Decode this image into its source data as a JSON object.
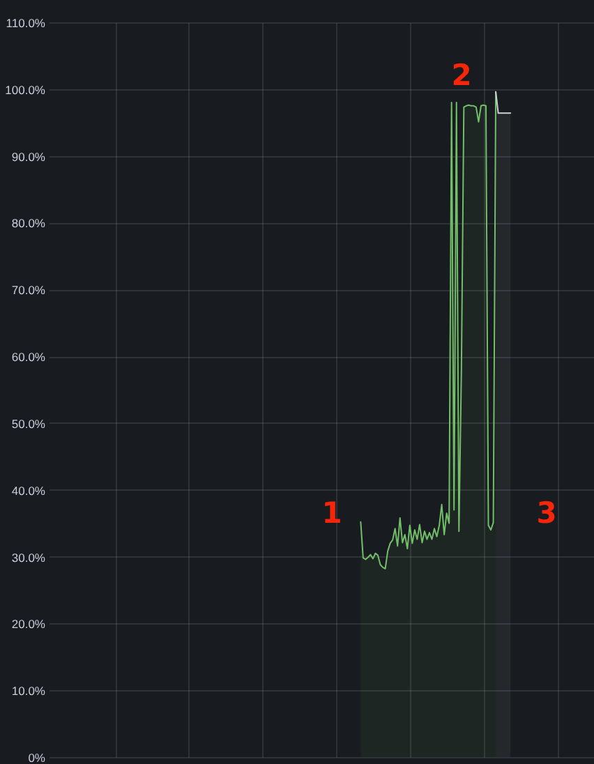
{
  "chart_data": {
    "type": "area",
    "categories": [
      null,
      null,
      null,
      null,
      null,
      null,
      null,
      null,
      null,
      null,
      null,
      null,
      null,
      null,
      null,
      null,
      null,
      null,
      null,
      null,
      null,
      null,
      null,
      null,
      null,
      null,
      null,
      null,
      null,
      null,
      null,
      null,
      null,
      null,
      null,
      null,
      null,
      null,
      null,
      null,
      null,
      null,
      null,
      null,
      null,
      null,
      null,
      null,
      null,
      null,
      null,
      null,
      null,
      null,
      null,
      null,
      null,
      null,
      null,
      null,
      null,
      null,
      null,
      null,
      null,
      null,
      null,
      null,
      null,
      null,
      null,
      null,
      null,
      null,
      null,
      null,
      null,
      null,
      null,
      null,
      null,
      null,
      null,
      null,
      null,
      null,
      null,
      null,
      null,
      null,
      null,
      null,
      null,
      null,
      null,
      null,
      null,
      null,
      null,
      null,
      null,
      null,
      null,
      null,
      null,
      null,
      null,
      null,
      null,
      null,
      null,
      null,
      null,
      null,
      null,
      null,
      null,
      null,
      null,
      null,
      null,
      null,
      null,
      null,
      null,
      null,
      null,
      null,
      null,
      null,
      null,
      null,
      null,
      null,
      null,
      null,
      null,
      null,
      null,
      null,
      null,
      null,
      null,
      null,
      null,
      null,
      null,
      null,
      null,
      null,
      null,
      null,
      null,
      null,
      null,
      null,
      null,
      null,
      null,
      null,
      null,
      null,
      null,
      null,
      null,
      null,
      null,
      null,
      null,
      null,
      null,
      null,
      null,
      null,
      null,
      null,
      null,
      null,
      null,
      null,
      null,
      null,
      null,
      null,
      null,
      null,
      null,
      null,
      null,
      null,
      null,
      null,
      null,
      null,
      null,
      null,
      null,
      null,
      null,
      null,
      null,
      null,
      null,
      null,
      null,
      null,
      null,
      null,
      null,
      null,
      null,
      null,
      null,
      null,
      null,
      null,
      null,
      null,
      null,
      null,
      null,
      null,
      null
    ],
    "series": [
      {
        "color": "#73bf69",
        "values": [
          null,
          null,
          null,
          null,
          null,
          null,
          null,
          null,
          null,
          null,
          null,
          null,
          null,
          null,
          null,
          null,
          null,
          null,
          null,
          null,
          null,
          null,
          null,
          null,
          null,
          null,
          null,
          null,
          null,
          null,
          null,
          null,
          null,
          null,
          null,
          null,
          null,
          null,
          null,
          null,
          null,
          null,
          null,
          null,
          null,
          null,
          null,
          null,
          null,
          null,
          null,
          null,
          null,
          null,
          null,
          null,
          null,
          null,
          null,
          null,
          null,
          null,
          null,
          null,
          null,
          null,
          null,
          null,
          null,
          null,
          null,
          null,
          null,
          null,
          null,
          null,
          null,
          null,
          null,
          null,
          null,
          null,
          null,
          null,
          null,
          null,
          null,
          null,
          null,
          null,
          null,
          null,
          null,
          null,
          null,
          null,
          null,
          null,
          null,
          null,
          null,
          null,
          null,
          null,
          null,
          null,
          null,
          null,
          null,
          null,
          null,
          null,
          null,
          null,
          null,
          null,
          null,
          null,
          null,
          null,
          null,
          null,
          null,
          null,
          null,
          null,
          null,
          35.2,
          29.8,
          29.6,
          29.9,
          30.3,
          29.7,
          30.5,
          30.2,
          28.8,
          28.4,
          28.2,
          30.8,
          32.0,
          32.5,
          34.2,
          31.6,
          35.8,
          32.1,
          33.3,
          31.2,
          34.7,
          32.0,
          34.0,
          32.6,
          34.8,
          32.1,
          33.8,
          32.6,
          33.6,
          32.6,
          34.2,
          33.0,
          34.7,
          37.8,
          33.3,
          36.5,
          35.0,
          98.0,
          37.0,
          98.0,
          33.8,
          57.7,
          97.3,
          97.5,
          97.6,
          97.5,
          97.5,
          97.3,
          95.1,
          97.5,
          97.6,
          97.5,
          34.7,
          34.0,
          35.1,
          99.6,
          null,
          null,
          null,
          null,
          null,
          null,
          null,
          null,
          null,
          null,
          null,
          null,
          null,
          null,
          null,
          null,
          null,
          null,
          null,
          null,
          null,
          null,
          null,
          null,
          null,
          null,
          null,
          null,
          null,
          null,
          null,
          null,
          null,
          null,
          null,
          null,
          null,
          null,
          null,
          null
        ]
      },
      {
        "color": "#d0d0d6",
        "values": [
          null,
          null,
          null,
          null,
          null,
          null,
          null,
          null,
          null,
          null,
          null,
          null,
          null,
          null,
          null,
          null,
          null,
          null,
          null,
          null,
          null,
          null,
          null,
          null,
          null,
          null,
          null,
          null,
          null,
          null,
          null,
          null,
          null,
          null,
          null,
          null,
          null,
          null,
          null,
          null,
          null,
          null,
          null,
          null,
          null,
          null,
          null,
          null,
          null,
          null,
          null,
          null,
          null,
          null,
          null,
          null,
          null,
          null,
          null,
          null,
          null,
          null,
          null,
          null,
          null,
          null,
          null,
          null,
          null,
          null,
          null,
          null,
          null,
          null,
          null,
          null,
          null,
          null,
          null,
          null,
          null,
          null,
          null,
          null,
          null,
          null,
          null,
          null,
          null,
          null,
          null,
          null,
          null,
          null,
          null,
          null,
          null,
          null,
          null,
          null,
          null,
          null,
          null,
          null,
          null,
          null,
          null,
          null,
          null,
          null,
          null,
          null,
          null,
          null,
          null,
          null,
          null,
          null,
          null,
          null,
          null,
          null,
          null,
          null,
          null,
          null,
          null,
          null,
          null,
          null,
          null,
          null,
          null,
          null,
          null,
          null,
          null,
          null,
          null,
          null,
          null,
          null,
          null,
          null,
          null,
          null,
          null,
          null,
          null,
          null,
          null,
          null,
          null,
          null,
          null,
          null,
          null,
          null,
          null,
          null,
          null,
          null,
          null,
          null,
          null,
          null,
          null,
          null,
          null,
          null,
          null,
          null,
          null,
          null,
          null,
          null,
          null,
          null,
          null,
          null,
          null,
          null,
          99.6,
          96.4,
          96.4,
          96.4,
          96.4,
          96.4,
          96.4,
          null,
          null,
          null,
          null,
          null,
          null,
          null,
          null,
          null,
          null,
          null,
          null,
          null,
          null,
          null,
          null,
          null,
          null,
          null,
          null,
          null,
          null,
          null,
          null,
          null,
          null,
          null,
          null,
          null,
          null,
          null,
          null,
          null,
          null
        ]
      }
    ],
    "ylim": [
      0,
      110
    ],
    "yticks": [
      {
        "value": 0,
        "label": "0%"
      },
      {
        "value": 10,
        "label": "10.0%"
      },
      {
        "value": 20,
        "label": "20.0%"
      },
      {
        "value": 30,
        "label": "30.0%"
      },
      {
        "value": 40,
        "label": "40.0%"
      },
      {
        "value": 50,
        "label": "50.0%"
      },
      {
        "value": 60,
        "label": "60.0%"
      },
      {
        "value": 70,
        "label": "70.0%"
      },
      {
        "value": 80,
        "label": "80.0%"
      },
      {
        "value": 90,
        "label": "90.0%"
      },
      {
        "value": 100,
        "label": "100.0%"
      },
      {
        "value": 110,
        "label": "110.0%"
      }
    ],
    "tick_labels": "y",
    "grid": true,
    "line_style": "solid",
    "annotations": [
      "1",
      "2",
      "3"
    ]
  }
}
